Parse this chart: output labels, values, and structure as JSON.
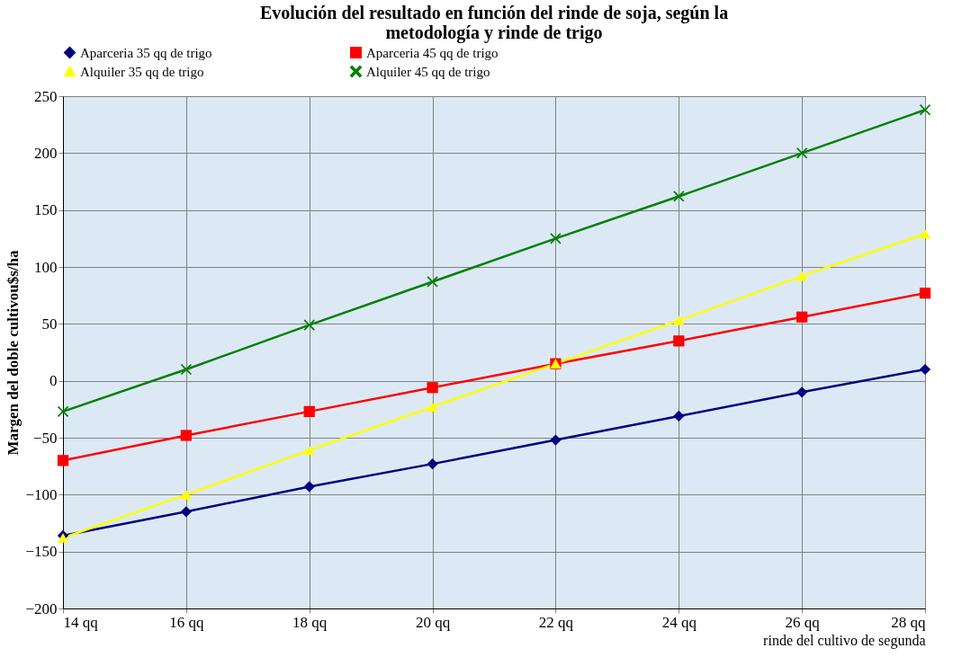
{
  "chart_data": {
    "type": "line",
    "title": "Evolución del resultado en función del rinde de soja, según la metodología y rinde de trigo",
    "xlabel": "rinde del cultivo de segunda",
    "ylabel": "Margen del doble cultivou$s/ha",
    "categories": [
      "14 qq",
      "16 qq",
      "18 qq",
      "20 qq",
      "22 qq",
      "24 qq",
      "26 qq",
      "28 qq"
    ],
    "series": [
      {
        "name": "Aparceria 35 qq de trigo",
        "color": "#000080",
        "marker": "diamond",
        "values": [
          -136,
          -115,
          -93,
          -73,
          -52,
          -31,
          -10,
          10
        ]
      },
      {
        "name": "Aparceria 45 qq de trigo",
        "color": "#ff0000",
        "marker": "square",
        "values": [
          -70,
          -48,
          -27,
          -6,
          15,
          35,
          56,
          77
        ]
      },
      {
        "name": "Alquiler 35 qq de trigo",
        "color": "#ffff00",
        "marker": "triangle",
        "values": [
          -138,
          -100,
          -61,
          -23,
          15,
          53,
          92,
          129
        ]
      },
      {
        "name": "Alquiler 45 qq de trigo",
        "color": "#008000",
        "marker": "cross",
        "values": [
          -27,
          10,
          49,
          87,
          125,
          162,
          200,
          238
        ]
      }
    ],
    "ylim": [
      -200,
      250
    ],
    "yticks": [
      -200,
      -150,
      -100,
      -50,
      0,
      50,
      100,
      150,
      200,
      250
    ],
    "grid": true,
    "legend": "top",
    "line_style": "solid"
  }
}
